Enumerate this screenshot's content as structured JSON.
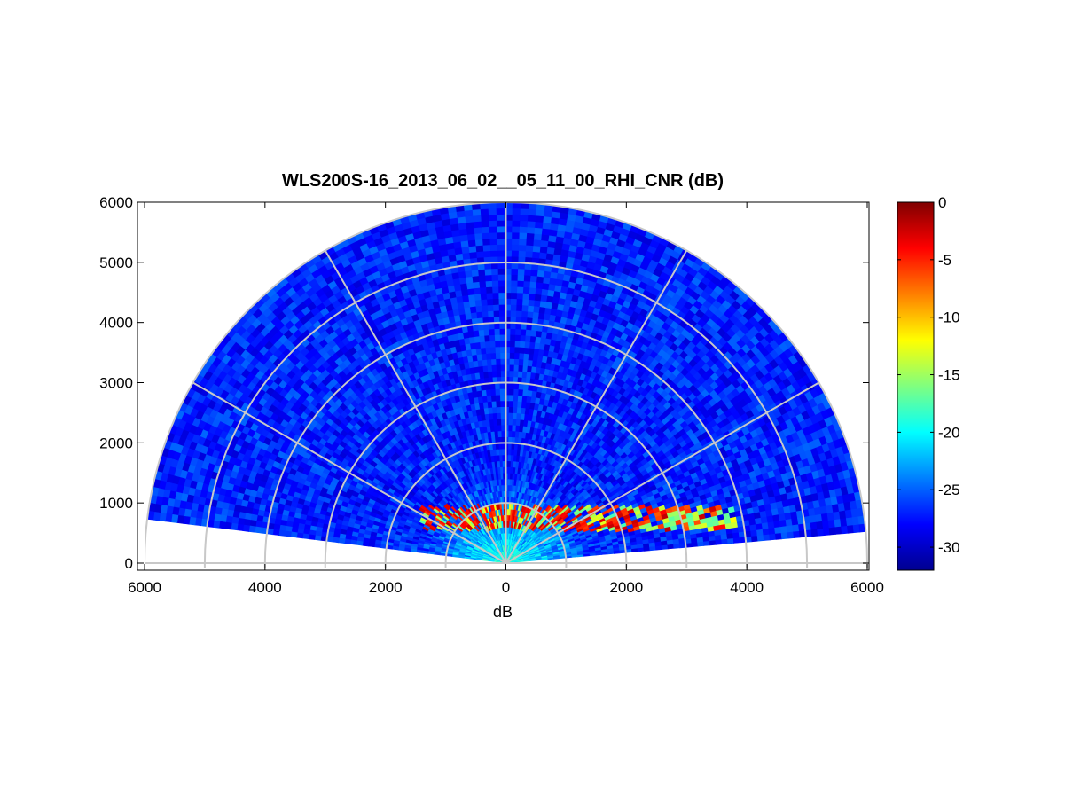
{
  "chart_data": {
    "type": "heatmap",
    "subtype": "polar-rhi-scan",
    "title": "WLS200S-16_2013_06_02__05_11_00_RHI_CNR (dB)",
    "xlabel": "dB",
    "ylabel": "",
    "x_ticks": [
      "6000",
      "4000",
      "2000",
      "0",
      "2000",
      "4000",
      "6000"
    ],
    "y_ticks": [
      "0",
      "1000",
      "2000",
      "3000",
      "4000",
      "5000",
      "6000"
    ],
    "xlim": [
      -6000,
      6000
    ],
    "ylim": [
      0,
      6000
    ],
    "grid": "polar",
    "range_rings": [
      1000,
      2000,
      3000,
      4000,
      5000,
      6000
    ],
    "spokes_deg": [
      30,
      60,
      90,
      120,
      150
    ],
    "max_range": 6000,
    "elevation_start_deg": 5,
    "elevation_end_deg": 173,
    "colorbar": {
      "label": "",
      "min": -32,
      "max": 0,
      "ticks": [
        "0",
        "-5",
        "-10",
        "-15",
        "-20",
        "-25",
        "-30"
      ],
      "colormap": "jet"
    },
    "features": {
      "background_level_db": -27,
      "near_field_level_db": -20,
      "aerosol_layer": {
        "height_min": 550,
        "height_max": 950,
        "x_min": -1400,
        "x_max": 3800,
        "peak_db": -2
      }
    }
  }
}
